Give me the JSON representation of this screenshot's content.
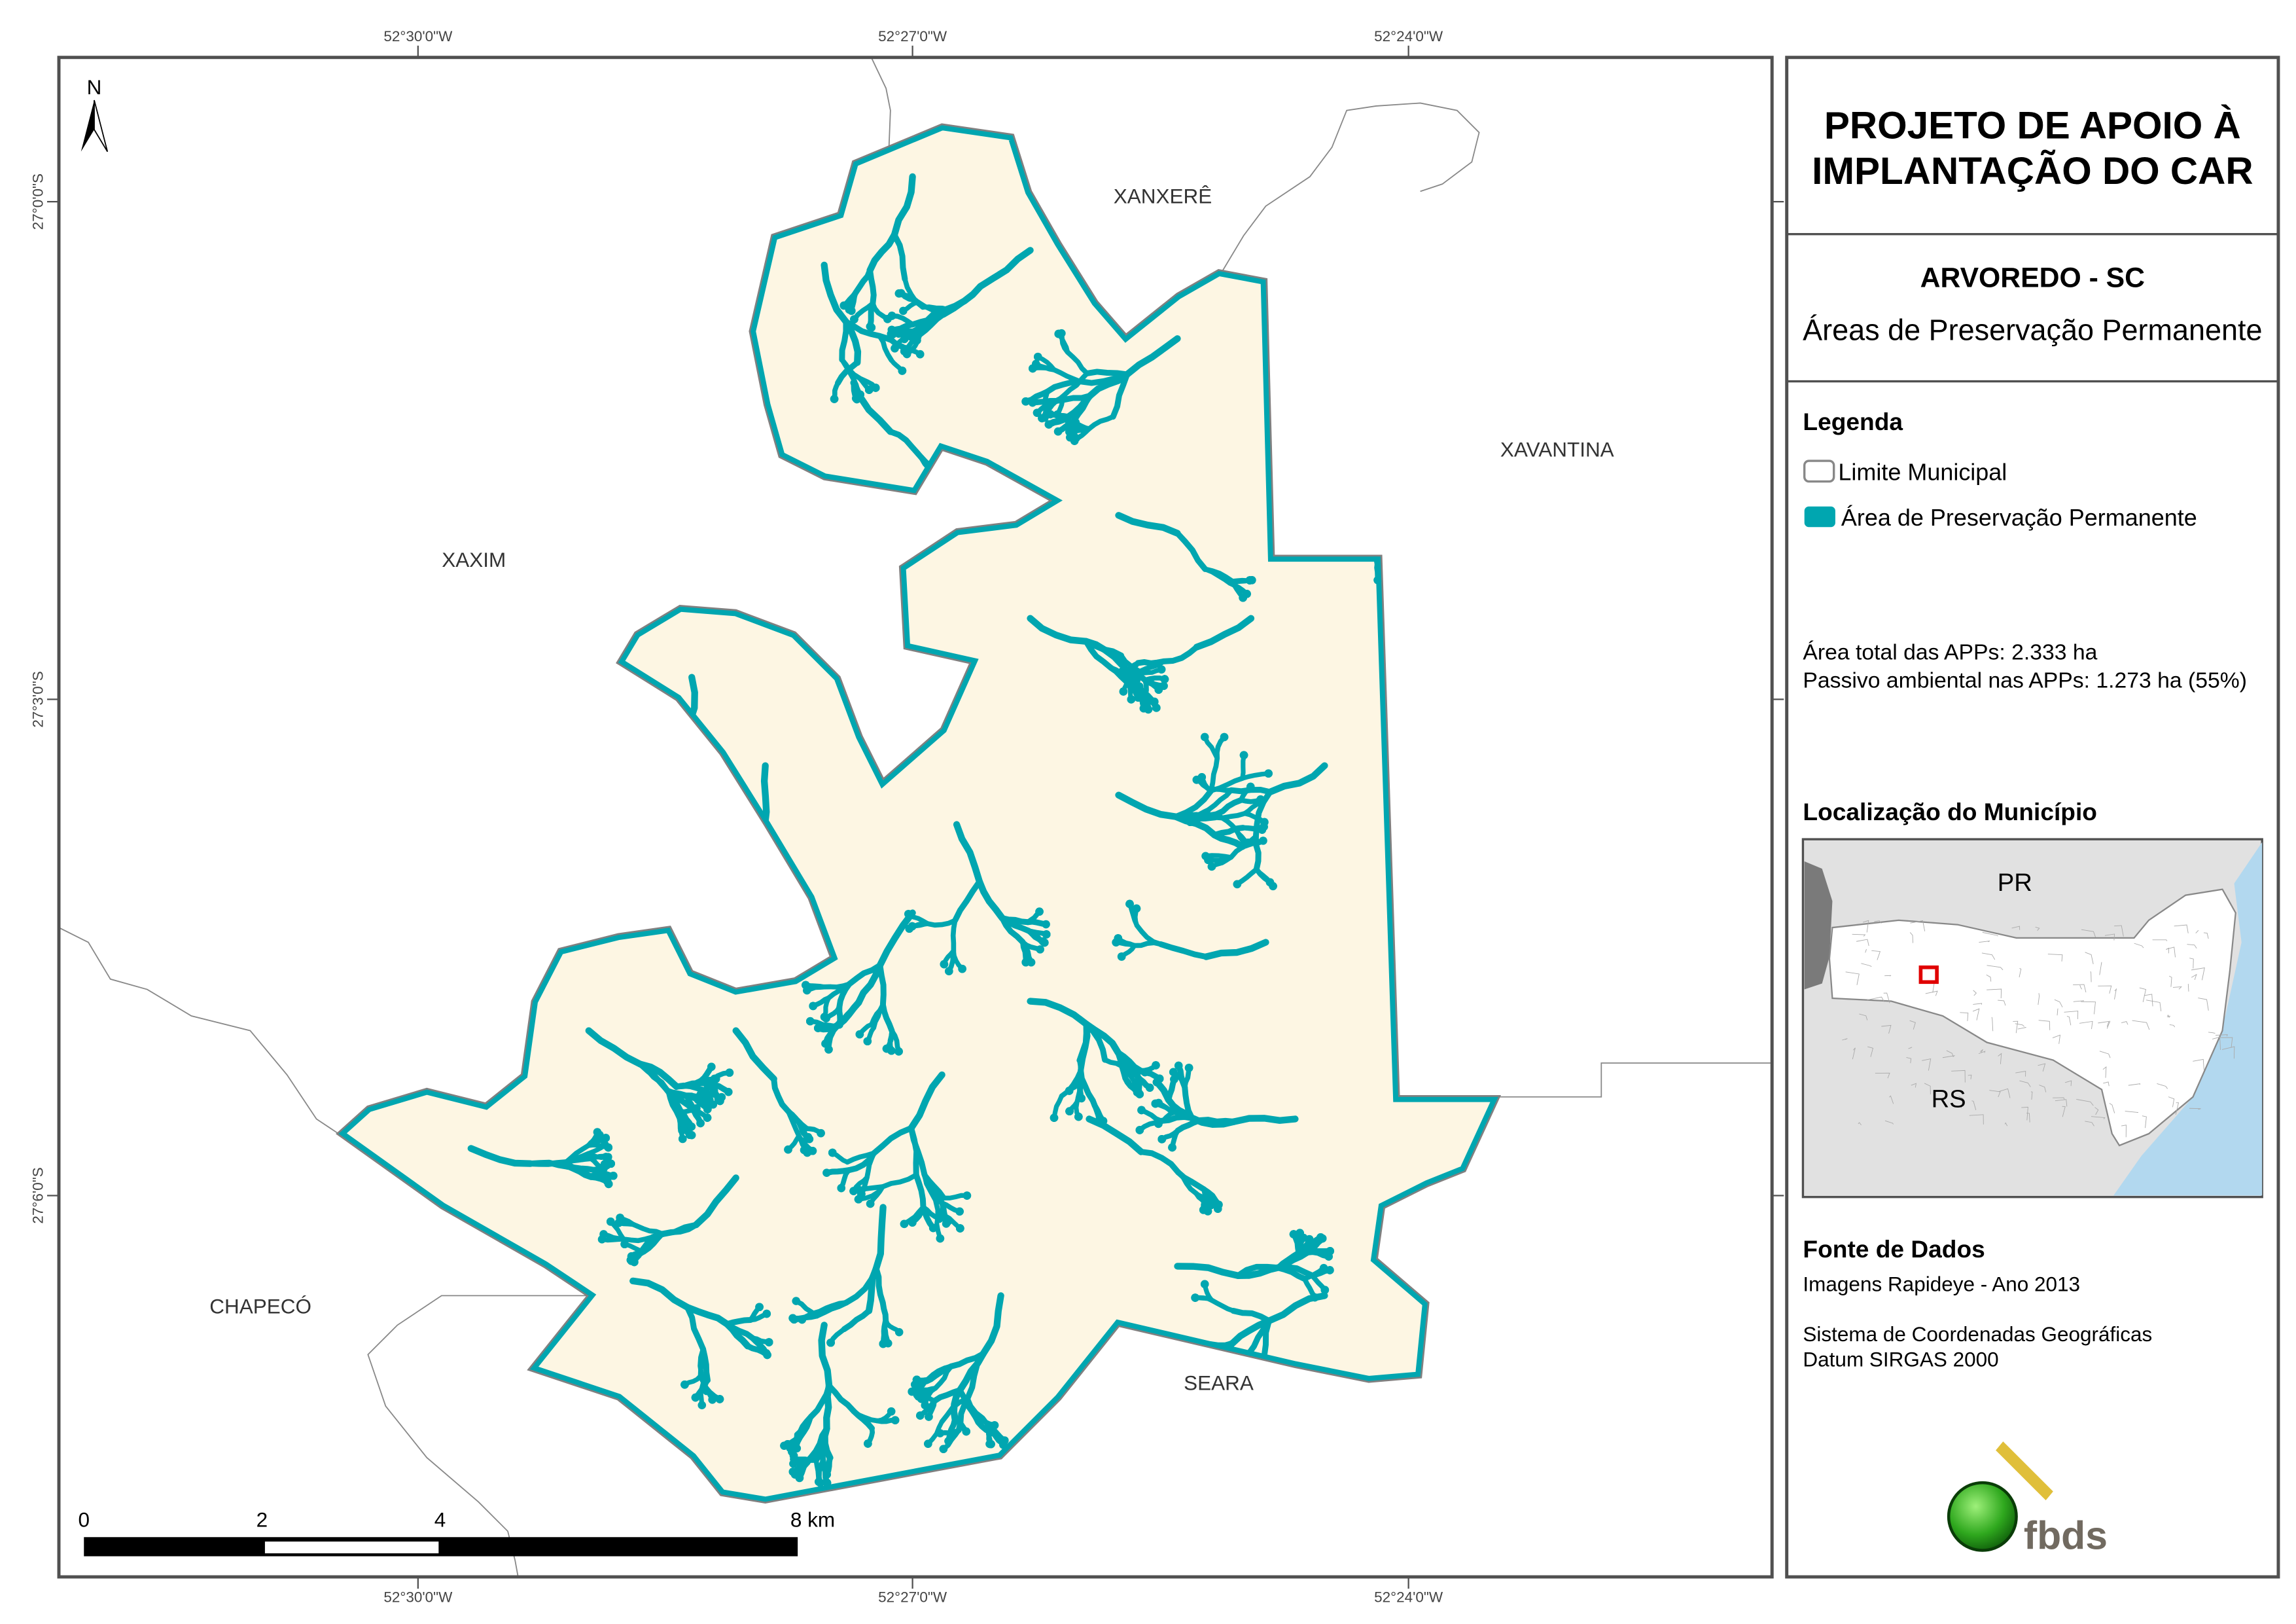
{
  "map": {
    "top_coords": [
      "52°30'0\"W",
      "52°27'0\"W",
      "52°24'0\"W"
    ],
    "bottom_coords": [
      "52°30'0\"W",
      "52°27'0\"W",
      "52°24'0\"W"
    ],
    "left_coords": [
      "27°0'0\"S",
      "27°3'0\"S",
      "27°6'0\"S"
    ],
    "north_label": "N",
    "places": {
      "xanxere": "XANXERÊ",
      "xavantina": "XAVANTINA",
      "xaxim": "XAXIM",
      "chapeco": "CHAPECÓ",
      "seara": "SEARA"
    },
    "scale_bar": {
      "labels": [
        "0",
        "2",
        "4",
        "8 km"
      ]
    },
    "colors": {
      "municipality_fill": "#fdf6e3",
      "app": "#00a6b0",
      "boundary": "#888888"
    }
  },
  "panel": {
    "title_line1": "PROJETO DE APOIO À",
    "title_line2": "IMPLANTAÇÃO DO CAR",
    "municipality": "ARVOREDO - SC",
    "theme": "Áreas de Preservação Permanente",
    "legend": {
      "heading": "Legenda",
      "items": [
        {
          "label": "Limite Municipal",
          "swatch": "#ffffff"
        },
        {
          "label": "Área de Preservação Permanente",
          "swatch": "#00a6b0"
        }
      ]
    },
    "stats": {
      "total_label": "Área total das APPs:",
      "total_value": "2.333 ha",
      "passivo_label": "Passivo ambiental nas APPs:",
      "passivo_value": "1.273 ha (55%)"
    },
    "location": {
      "heading": "Localização do Município",
      "labels": [
        "PR",
        "RS"
      ]
    },
    "sources": {
      "heading": "Fonte de Dados",
      "line1": "Imagens Rapideye - Ano 2013",
      "line2": "Sistema de Coordenadas Geográficas",
      "line3": "Datum SIRGAS 2000"
    },
    "logo": "fbds"
  }
}
